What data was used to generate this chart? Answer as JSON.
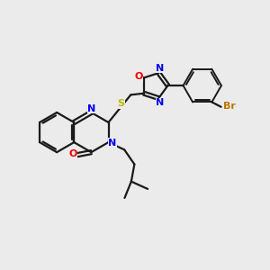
{
  "bg_color": "#ebebeb",
  "bond_color": "#1a1a1a",
  "N_color": "#0000ee",
  "O_color": "#ee0000",
  "S_color": "#bbbb00",
  "Br_color": "#bb7700",
  "figsize": [
    3.0,
    3.0
  ],
  "dpi": 100,
  "xlim": [
    0,
    10
  ],
  "ylim": [
    0,
    10
  ]
}
